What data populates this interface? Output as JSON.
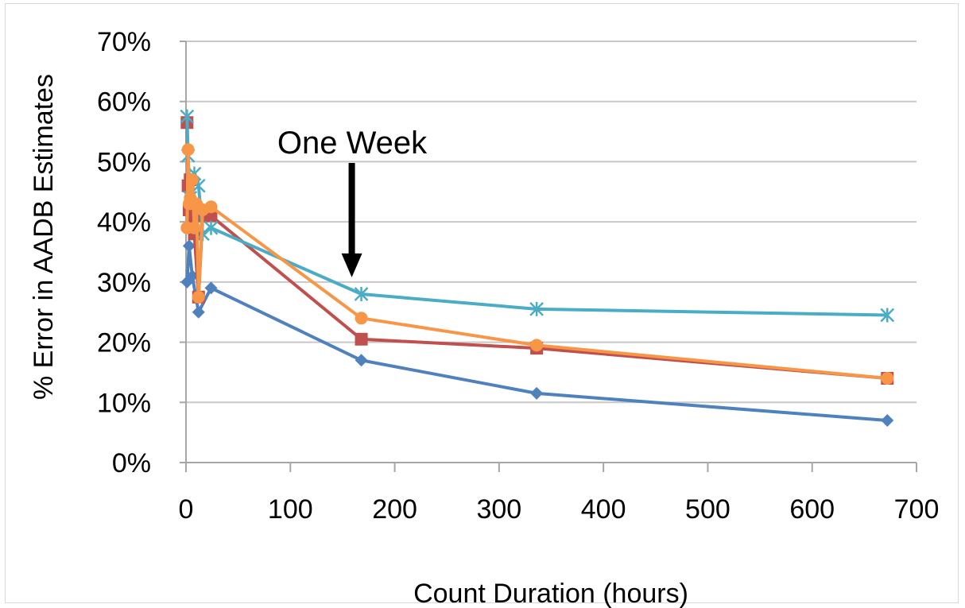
{
  "chart_data": {
    "type": "scatter",
    "title": "",
    "xlabel": "Count Duration (hours)",
    "ylabel": "% Error in AADB Estimates",
    "xlim": [
      0,
      700
    ],
    "ylim": [
      0,
      70
    ],
    "x_ticks": [
      "0",
      "100",
      "200",
      "300",
      "400",
      "500",
      "600",
      "700"
    ],
    "y_ticks": [
      "0%",
      "10%",
      "20%",
      "30%",
      "40%",
      "50%",
      "60%",
      "70%"
    ],
    "grid": "horizontal",
    "legend": "none",
    "annotations": [
      {
        "text": "One Week",
        "x": 168,
        "y": 30
      }
    ],
    "series": [
      {
        "color": "#4f81bd",
        "marker": "diamond",
        "points": [
          [
            1,
            30
          ],
          [
            3,
            36
          ],
          [
            6,
            31
          ],
          [
            12,
            25
          ],
          [
            24,
            29
          ],
          [
            168,
            17
          ],
          [
            336,
            11.5
          ],
          [
            672,
            7
          ]
        ]
      },
      {
        "color": "#c0504d",
        "marker": "square",
        "points": [
          [
            1,
            56.5
          ],
          [
            2,
            46
          ],
          [
            3,
            42
          ],
          [
            4,
            47
          ],
          [
            6,
            40
          ],
          [
            8,
            38
          ],
          [
            12,
            27.5
          ],
          [
            16,
            41
          ],
          [
            24,
            41
          ],
          [
            168,
            20.5
          ],
          [
            336,
            19
          ],
          [
            672,
            14
          ]
        ]
      },
      {
        "color": "#4bacc6",
        "marker": "asterisk",
        "points": [
          [
            1,
            57.5
          ],
          [
            2,
            51
          ],
          [
            4,
            44
          ],
          [
            8,
            48
          ],
          [
            12,
            46
          ],
          [
            16,
            38
          ],
          [
            24,
            39
          ],
          [
            168,
            28
          ],
          [
            336,
            25.5
          ],
          [
            672,
            24.5
          ]
        ]
      },
      {
        "color": "#f79646",
        "marker": "circle",
        "points": [
          [
            1,
            39
          ],
          [
            2,
            52
          ],
          [
            3,
            43
          ],
          [
            4,
            44
          ],
          [
            6,
            47
          ],
          [
            8,
            39
          ],
          [
            10,
            43
          ],
          [
            12,
            27.5
          ],
          [
            16,
            42
          ],
          [
            24,
            42.5
          ],
          [
            168,
            24
          ],
          [
            336,
            19.5
          ],
          [
            672,
            14
          ]
        ]
      }
    ]
  }
}
